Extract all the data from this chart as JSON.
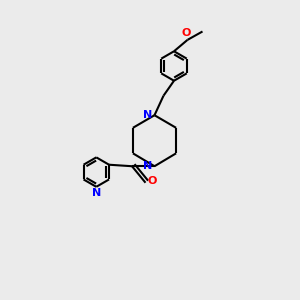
{
  "background_color": "#ebebeb",
  "bond_color": "#000000",
  "N_color": "#0000ff",
  "O_color": "#ff0000",
  "bond_width": 1.5,
  "figsize": [
    3.0,
    3.0
  ],
  "dpi": 100,
  "xlim": [
    0,
    10
  ],
  "ylim": [
    0,
    10
  ]
}
